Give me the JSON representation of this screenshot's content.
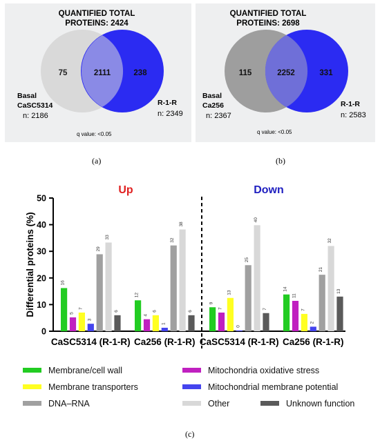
{
  "venn_a": {
    "title_line1": "QUANTIFIED TOTAL",
    "title_line2": "PROTEINS: 2424",
    "left_only": "75",
    "overlap": "2111",
    "right_only": "238",
    "left_label_line1": "Basal",
    "left_label_line2": "CaSC5314",
    "left_n": "n: 2186",
    "right_label": "R-1-R",
    "right_n": "n: 2349",
    "q_value": "q value: <0.05",
    "caption": "(a)",
    "colors": {
      "left": "#d9d9d9",
      "right": "#2b2bf2",
      "overlap": "#8a8ae6"
    }
  },
  "venn_b": {
    "title_line1": "QUANTIFIED TOTAL",
    "title_line2": "PROTEINS: 2698",
    "left_only": "115",
    "overlap": "2252",
    "right_only": "331",
    "left_label_line1": "Basal",
    "left_label_line2": "Ca256",
    "left_n": "n: 2367",
    "right_label": "R-1-R",
    "right_n": "n: 2583",
    "q_value": "q value: <0.05",
    "caption": "(b)",
    "colors": {
      "left": "#9e9e9e",
      "right": "#2b2bf2",
      "overlap": "#6f6fd8"
    }
  },
  "chart_caption": "(c)",
  "chart_data": {
    "type": "bar",
    "ylabel": "Differential proteins (%)",
    "ylim": [
      0,
      50
    ],
    "yticks": [
      0,
      10,
      20,
      30,
      40,
      50
    ],
    "section_labels": [
      {
        "text": "Up",
        "color": "#e02020"
      },
      {
        "text": "Down",
        "color": "#2020c0"
      }
    ],
    "categories": [
      "CaSC5314 (R-1-R)",
      "Ca256 (R-1-R)",
      "CaSC5314 (R-1-R)",
      "Ca256 (R-1-R)"
    ],
    "series": [
      {
        "name": "Membrane/cell wall",
        "color": "#22cc22",
        "values": [
          16,
          12,
          9,
          14
        ]
      },
      {
        "name": "Mitochondria oxidative stress",
        "color": "#c020c0",
        "values": [
          5,
          4,
          7,
          11
        ]
      },
      {
        "name": "Membrane transporters",
        "color": "#ffff22",
        "values": [
          7,
          6,
          13,
          7
        ]
      },
      {
        "name": "Mitochondrial membrane potential",
        "color": "#4444ee",
        "values": [
          3,
          1,
          0,
          2
        ]
      },
      {
        "name": "DNA–RNA",
        "color": "#a0a0a0",
        "values": [
          29,
          32,
          25,
          21
        ]
      },
      {
        "name": "Other",
        "color": "#d8d8d8",
        "values": [
          33,
          38,
          40,
          32
        ]
      },
      {
        "name": "Unknown function",
        "color": "#5a5a5a",
        "values": [
          6,
          6,
          7,
          13
        ]
      }
    ],
    "plot_values": [
      [
        16.2,
        11.6,
        9.0,
        13.8
      ],
      [
        5.2,
        4.5,
        7.0,
        11.4
      ],
      [
        7.0,
        6.0,
        12.5,
        6.5
      ],
      [
        2.8,
        1.3,
        0.3,
        1.7
      ],
      [
        28.9,
        32.2,
        24.8,
        21.2
      ],
      [
        33.3,
        38.2,
        39.8,
        32.0
      ],
      [
        6.0,
        6.0,
        6.8,
        13.0
      ]
    ],
    "grid": false,
    "legend_position": "bottom"
  }
}
